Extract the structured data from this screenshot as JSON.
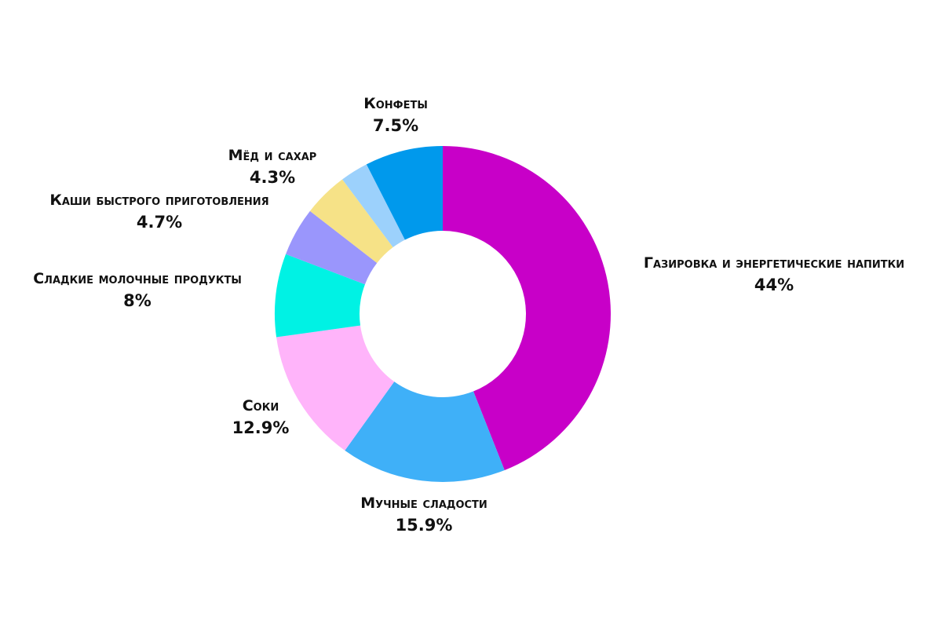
{
  "chart_data": {
    "type": "pie",
    "slices": [
      {
        "label": "Газировка и энергетические напитки",
        "value": 44,
        "display": "44%",
        "color": "#C800C8"
      },
      {
        "label": "Мучные сладости",
        "value": 15.9,
        "display": "15.9%",
        "color": "#3FB0F8"
      },
      {
        "label": "Соки",
        "value": 12.9,
        "display": "12.9%",
        "color": "#FFB4FA"
      },
      {
        "label": "Сладкие молочные продукты",
        "value": 8,
        "display": "8%",
        "color": "#00F2E4"
      },
      {
        "label": "Каши быстрого приготовления",
        "value": 4.7,
        "display": "4.7%",
        "color": "#9A96FC"
      },
      {
        "label": "Мёд и сахар",
        "value": 4.3,
        "display": "4.3%",
        "color": "#F6E287"
      },
      {
        "label": "",
        "value": 2.7,
        "display": "",
        "color": "#9CD1FC"
      },
      {
        "label": "Конфеты",
        "value": 7.5,
        "display": "7.5%",
        "color": "#0099EC"
      }
    ]
  }
}
